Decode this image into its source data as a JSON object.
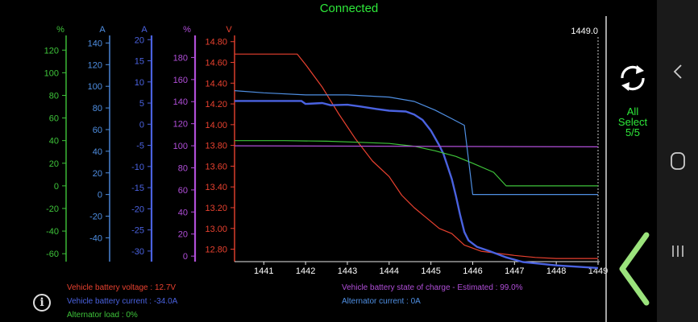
{
  "status": "Connected",
  "cursor_value": "1449.0",
  "colors": {
    "voltage": "#e8412f",
    "current": "#4a62e0",
    "alternator_load": "#3ec43a",
    "soc": "#b04ed8",
    "alt_current": "#4f8fe3",
    "status_green": "#2ee83a"
  },
  "axes": [
    {
      "unit": "%",
      "color": "#3ec43a",
      "ticks": [
        120,
        100,
        80,
        60,
        40,
        20,
        0,
        -20,
        -40,
        -60
      ],
      "range": [
        -67,
        133
      ]
    },
    {
      "unit": "A",
      "color": "#4f8fe3",
      "ticks": [
        140,
        120,
        100,
        80,
        60,
        40,
        20,
        0,
        -20,
        -40
      ],
      "range": [
        -62,
        147
      ]
    },
    {
      "unit": "A",
      "color": "#4a62e0",
      "ticks": [
        20,
        15,
        10,
        5,
        0,
        -5,
        -10,
        -15,
        -20,
        -25,
        -30
      ],
      "range": [
        -32.5,
        21
      ]
    },
    {
      "unit": "%",
      "color": "#b04ed8",
      "ticks": [
        180,
        160,
        140,
        120,
        100,
        80,
        60,
        40,
        20,
        0
      ],
      "range": [
        -5,
        200
      ]
    },
    {
      "unit": "V",
      "color": "#e8412f",
      "ticks": [
        "14.80",
        "14.60",
        "14.40",
        "14.20",
        "14.00",
        "13.80",
        "13.60",
        "13.40",
        "13.20",
        "13.00",
        "12.80"
      ],
      "range": [
        12.68,
        14.86
      ]
    }
  ],
  "chart_data": {
    "type": "line",
    "x_range": [
      1440.3,
      1449.0
    ],
    "x_ticks": [
      "1441",
      "1442",
      "1443",
      "1444",
      "1445",
      "1446",
      "1447",
      "1448",
      "1449"
    ],
    "series": [
      {
        "name": "Vehicle battery voltage",
        "axis": 4,
        "color": "#e8412f",
        "points": [
          [
            1440.3,
            14.68
          ],
          [
            1441.8,
            14.68
          ],
          [
            1442.0,
            14.58
          ],
          [
            1442.4,
            14.36
          ],
          [
            1442.8,
            14.1
          ],
          [
            1443.2,
            13.86
          ],
          [
            1443.6,
            13.65
          ],
          [
            1444.0,
            13.5
          ],
          [
            1444.3,
            13.32
          ],
          [
            1444.6,
            13.2
          ],
          [
            1444.9,
            13.1
          ],
          [
            1445.2,
            13.0
          ],
          [
            1445.5,
            12.95
          ],
          [
            1445.8,
            12.84
          ],
          [
            1446.2,
            12.78
          ],
          [
            1446.6,
            12.76
          ],
          [
            1447.0,
            12.74
          ],
          [
            1447.5,
            12.72
          ],
          [
            1448.0,
            12.71
          ],
          [
            1449.0,
            12.71
          ]
        ]
      },
      {
        "name": "Vehicle battery current",
        "axis": 2,
        "color": "#4a62e0",
        "points": [
          [
            1440.3,
            5.5
          ],
          [
            1441.9,
            5.5
          ],
          [
            1442.0,
            4.8
          ],
          [
            1442.4,
            5.0
          ],
          [
            1442.6,
            4.5
          ],
          [
            1443.0,
            4.6
          ],
          [
            1443.3,
            4.2
          ],
          [
            1443.7,
            3.6
          ],
          [
            1444.0,
            3.2
          ],
          [
            1444.4,
            3.0
          ],
          [
            1444.6,
            2.3
          ],
          [
            1444.8,
            1.0
          ],
          [
            1445.0,
            -1.5
          ],
          [
            1445.2,
            -5.0
          ],
          [
            1445.3,
            -7.0
          ],
          [
            1445.4,
            -10.0
          ],
          [
            1445.5,
            -13.0
          ],
          [
            1445.6,
            -17.0
          ],
          [
            1445.7,
            -21.5
          ],
          [
            1445.8,
            -25.5
          ],
          [
            1445.9,
            -27.5
          ],
          [
            1446.1,
            -29.0
          ],
          [
            1446.4,
            -30.0
          ],
          [
            1446.8,
            -31.5
          ],
          [
            1447.2,
            -32.6
          ],
          [
            1447.6,
            -33.0
          ],
          [
            1448.0,
            -33.4
          ],
          [
            1449.0,
            -34.0
          ]
        ]
      },
      {
        "name": "Alternator load",
        "axis": 0,
        "color": "#3ec43a",
        "points": [
          [
            1440.3,
            40.0
          ],
          [
            1441.5,
            40.0
          ],
          [
            1442.5,
            39.5
          ],
          [
            1443.3,
            38.5
          ],
          [
            1444.0,
            37.5
          ],
          [
            1444.6,
            35.0
          ],
          [
            1445.1,
            31.0
          ],
          [
            1445.6,
            26.0
          ],
          [
            1446.0,
            20.0
          ],
          [
            1446.5,
            12.0
          ],
          [
            1446.8,
            0.0
          ],
          [
            1447.2,
            0.0
          ],
          [
            1449.0,
            0.0
          ]
        ]
      },
      {
        "name": "Vehicle battery state of charge - Estimated",
        "axis": 3,
        "color": "#b04ed8",
        "points": [
          [
            1440.3,
            100.0
          ],
          [
            1449.0,
            99.0
          ]
        ]
      },
      {
        "name": "Alternator current",
        "axis": 1,
        "color": "#4f8fe3",
        "points": [
          [
            1440.3,
            96.0
          ],
          [
            1441.0,
            94.0
          ],
          [
            1442.0,
            92.0
          ],
          [
            1443.0,
            92.0
          ],
          [
            1444.0,
            90.0
          ],
          [
            1444.6,
            86.0
          ],
          [
            1445.1,
            78.0
          ],
          [
            1445.5,
            70.0
          ],
          [
            1445.8,
            64.0
          ],
          [
            1446.0,
            0.0
          ],
          [
            1449.0,
            0.0
          ]
        ]
      }
    ]
  },
  "legend": [
    {
      "text": "Vehicle battery voltage : 12.7V",
      "color": "#e8412f"
    },
    {
      "text": "Vehicle battery state of charge -  Estimated : 99.0%",
      "color": "#b04ed8"
    },
    {
      "text": "Vehicle battery current : -34.0A",
      "color": "#4a62e0"
    },
    {
      "text": "Alternator current : 0A",
      "color": "#4f8fe3"
    },
    {
      "text": "Alternator load : 0%",
      "color": "#3ec43a"
    }
  ],
  "info_icon": "i",
  "side": {
    "select_line1": "All",
    "select_line2": "Select",
    "select_line3": "5/5",
    "refresh_icon": "refresh-icon",
    "collapse_icon": "chevron-left-icon"
  },
  "nav_icons": [
    "back-icon",
    "home-icon",
    "recents-icon"
  ]
}
